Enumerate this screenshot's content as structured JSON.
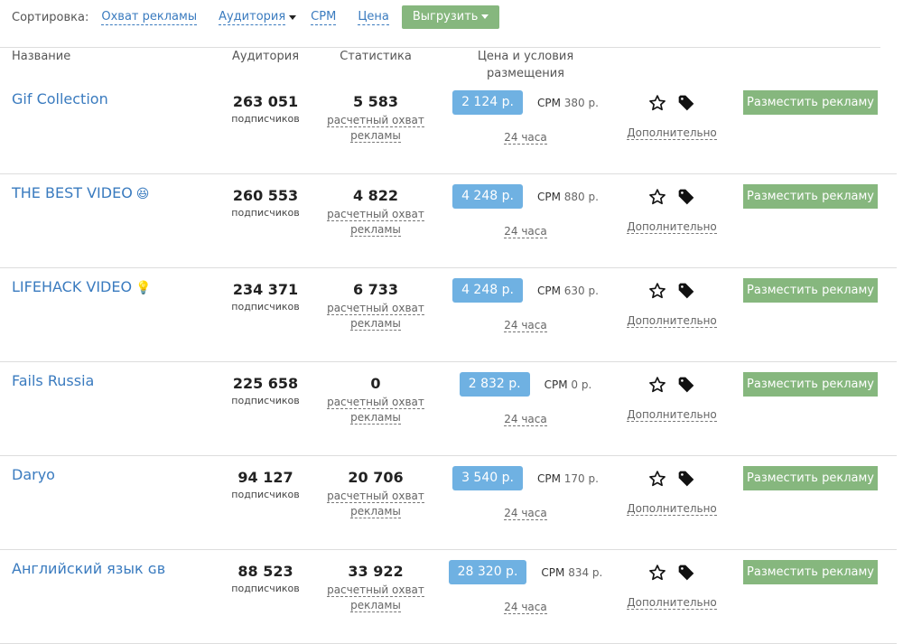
{
  "sort": {
    "label": "Сортировка:",
    "options": [
      "Охват рекламы",
      "Аудитория",
      "CPM",
      "Цена"
    ],
    "export": "Выгрузить"
  },
  "columns": {
    "name": "Название",
    "audience": "Аудитория",
    "stats": "Статистика",
    "price": "Цена и условия размещения"
  },
  "common": {
    "subs": "подписчиков",
    "reach1": "расчетный охват",
    "reach2": "рекламы",
    "hours": "24 часа",
    "more": "Дополнительно",
    "place": "Разместить рекламу",
    "cpm": "CPM"
  },
  "colors": {
    "link": "#3a7bbf",
    "green": "#86b77e",
    "price": "#6fb1e2"
  },
  "rows": [
    {
      "name": "Gif Collection",
      "emoji": "",
      "audience": "263 051",
      "stats": "5 583",
      "price": "2 124 р.",
      "cpm": "380 р."
    },
    {
      "name": "THE BEST VIDEO",
      "emoji": "😆",
      "audience": "260 553",
      "stats": "4 822",
      "price": "4 248 р.",
      "cpm": "880 р."
    },
    {
      "name": "LIFEHACK VIDEO",
      "emoji": "💡",
      "audience": "234 371",
      "stats": "6 733",
      "price": "4 248 р.",
      "cpm": "630 р."
    },
    {
      "name": "Fails Russia",
      "emoji": "",
      "audience": "225 658",
      "stats": "0",
      "price": "2 832 р.",
      "cpm": "0 р."
    },
    {
      "name": "Daryo",
      "emoji": "",
      "audience": "94 127",
      "stats": "20 706",
      "price": "3 540 р.",
      "cpm": "170 р."
    },
    {
      "name": "Английский язык ɢʙ",
      "emoji": "",
      "audience": "88 523",
      "stats": "33 922",
      "price": "28 320 р.",
      "cpm": "834 р."
    }
  ]
}
